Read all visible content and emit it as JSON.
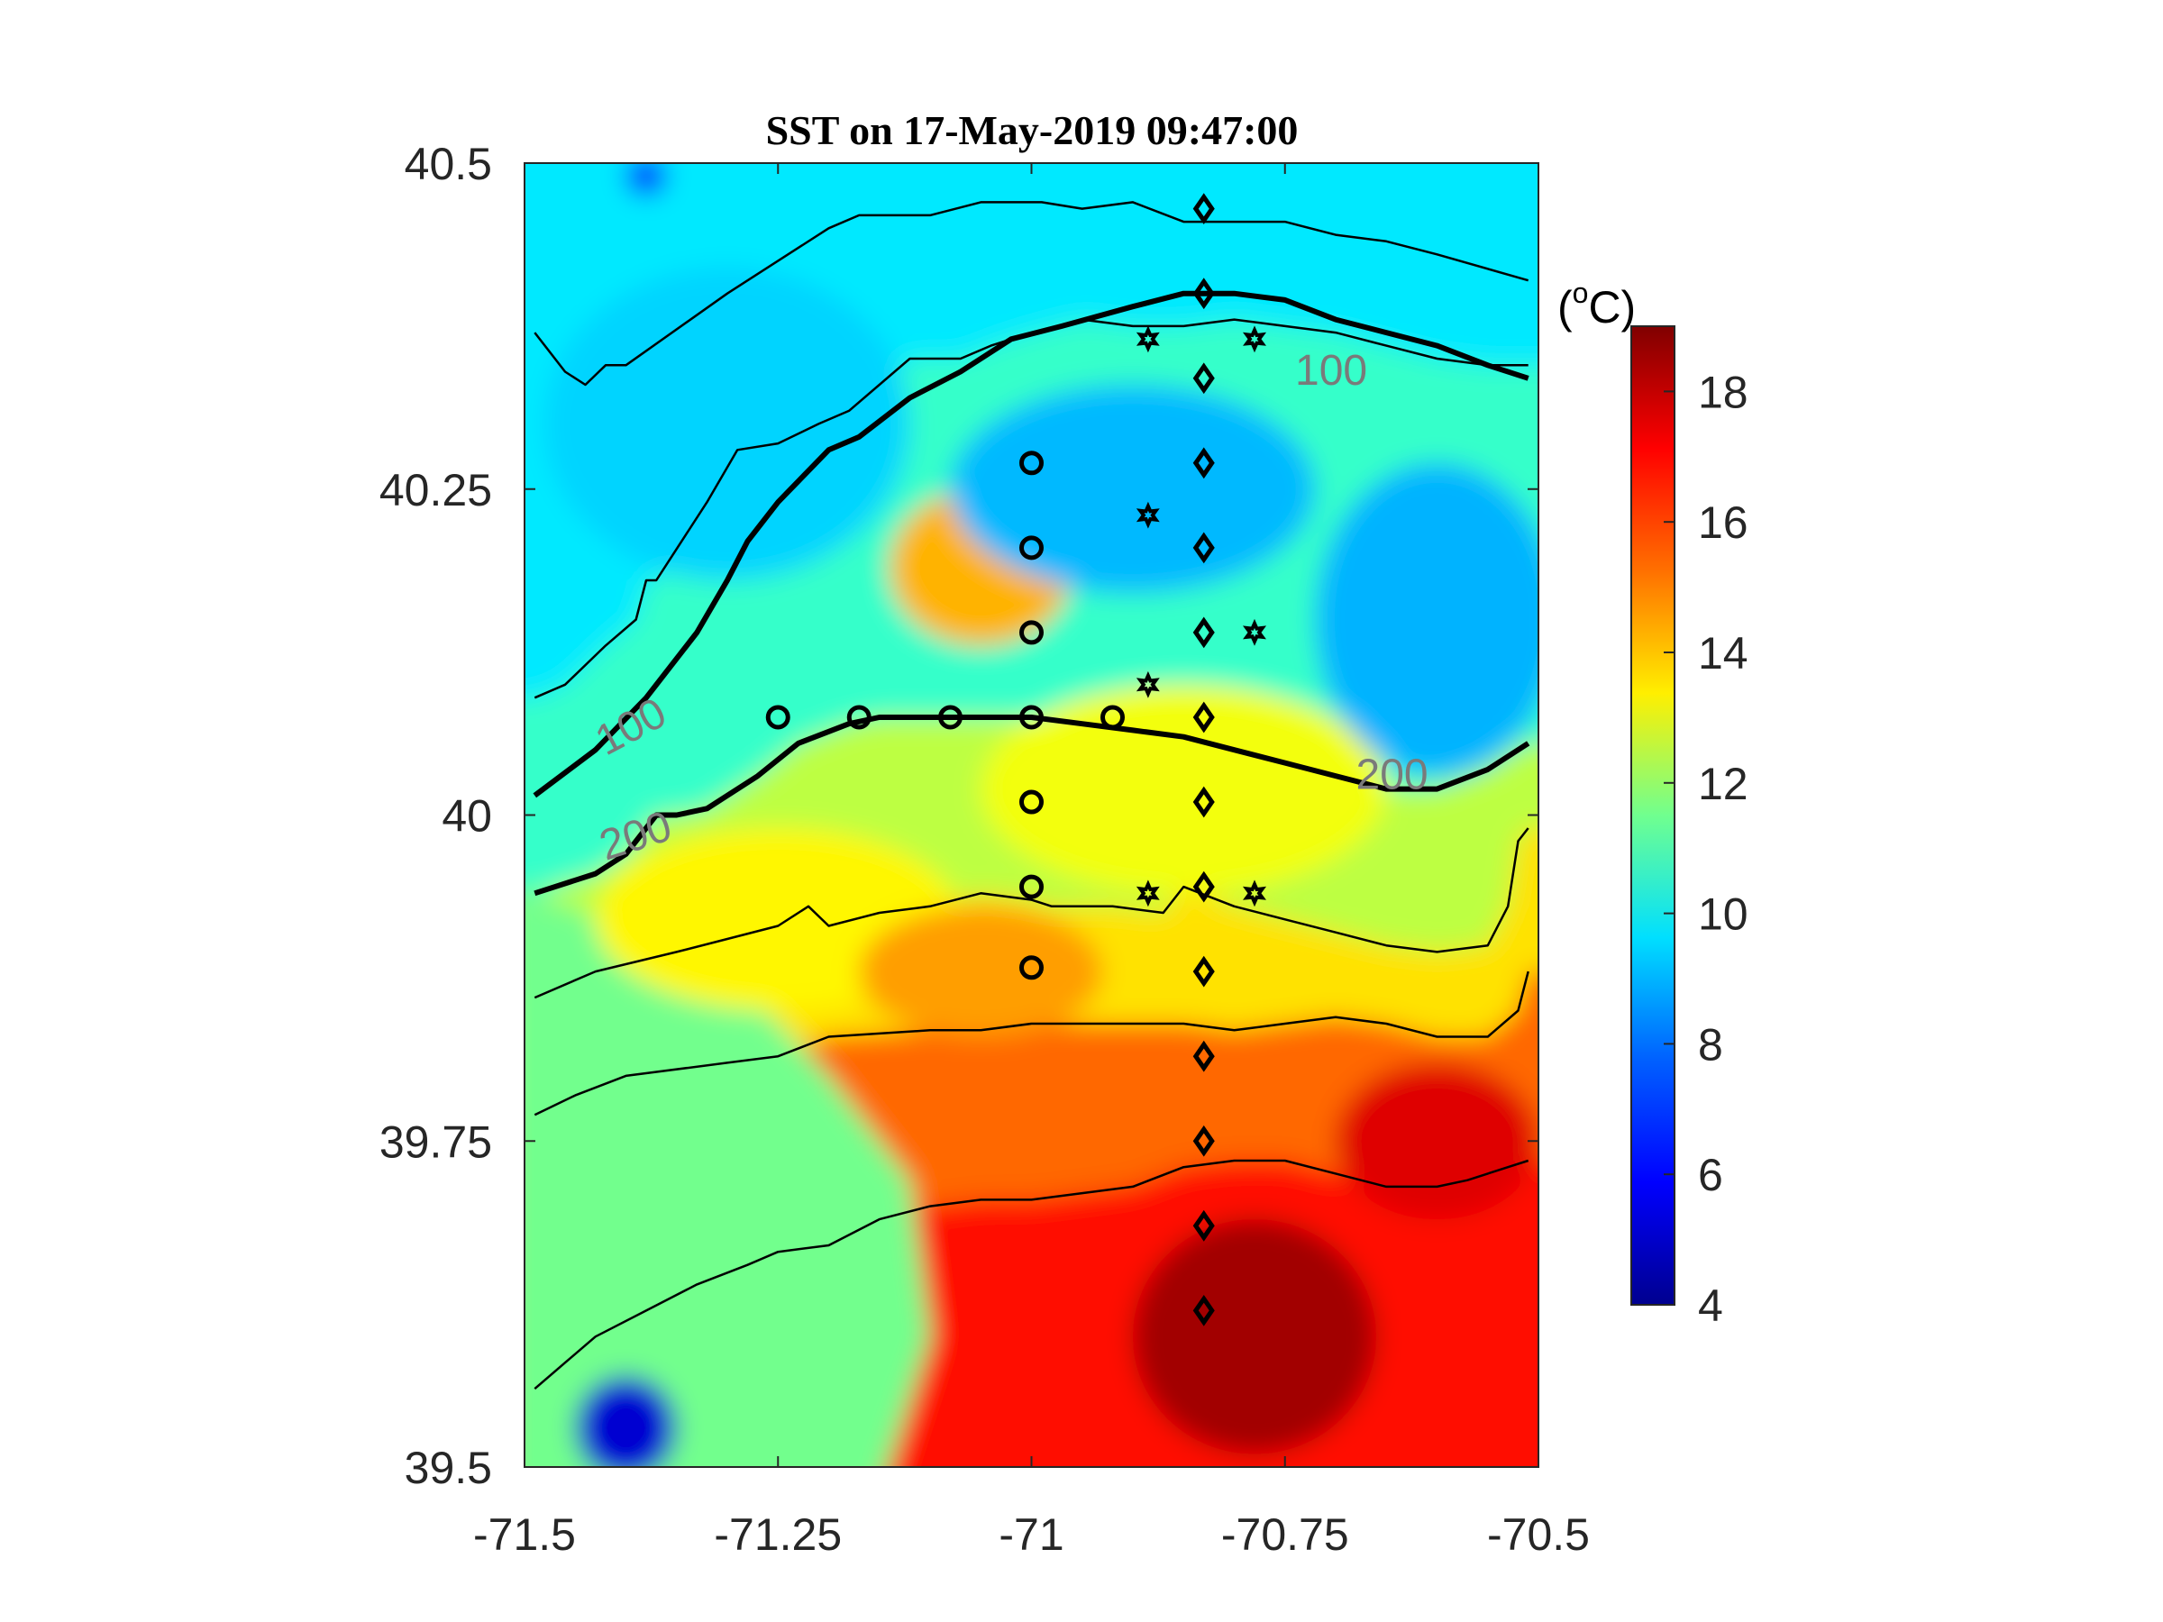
{
  "chart_data": {
    "type": "heatmap",
    "title": "SST on 17-May-2019 09:47:00",
    "x_axis": {
      "range": [
        -71.5,
        -70.5
      ],
      "ticks": [
        -71.5,
        -71.25,
        -71,
        -70.75,
        -70.5
      ],
      "tick_labels": [
        "-71.5",
        "-71.25",
        "-71",
        "-70.75",
        "-70.5"
      ]
    },
    "y_axis": {
      "range": [
        39.5,
        40.5
      ],
      "ticks": [
        39.5,
        39.75,
        40,
        40.25,
        40.5
      ],
      "tick_labels": [
        "39.5",
        "39.75",
        "40",
        "40.25",
        "40.5"
      ]
    },
    "colorbar": {
      "range": [
        4,
        19
      ],
      "ticks": [
        4,
        6,
        8,
        10,
        12,
        14,
        16,
        18
      ],
      "tick_labels": [
        "4",
        "6",
        "8",
        "10",
        "12",
        "14",
        "16",
        "18"
      ],
      "unit_prefix": "(",
      "unit_sup": "o",
      "unit_main": "C)",
      "colormap": "jet"
    },
    "sst_features": [
      {
        "lon": -71.05,
        "lat": 40.19,
        "radius_lon": 0.09,
        "radius_lat": 0.06,
        "value": 14.5
      },
      {
        "lon": -70.85,
        "lat": 40.02,
        "radius_lon": 0.2,
        "radius_lat": 0.08,
        "value": 13.2
      },
      {
        "lon": -71.25,
        "lat": 39.92,
        "radius_lon": 0.18,
        "radius_lat": 0.07,
        "value": 13.5
      },
      {
        "lon": -71.05,
        "lat": 39.88,
        "radius_lon": 0.12,
        "radius_lat": 0.05,
        "value": 14.8
      },
      {
        "lon": -70.78,
        "lat": 39.6,
        "radius_lon": 0.12,
        "radius_lat": 0.09,
        "value": 18.5
      },
      {
        "lon": -70.6,
        "lat": 39.75,
        "radius_lon": 0.1,
        "radius_lat": 0.06,
        "value": 17.6
      },
      {
        "lon": -71.4,
        "lat": 39.53,
        "radius_lon": 0.05,
        "radius_lat": 0.04,
        "value": 5.2
      },
      {
        "lon": -71.38,
        "lat": 40.49,
        "radius_lon": 0.02,
        "radius_lat": 0.015,
        "value": 6.5
      },
      {
        "lon": -70.9,
        "lat": 40.25,
        "radius_lon": 0.18,
        "radius_lat": 0.08,
        "value": 8.6
      },
      {
        "lon": -70.6,
        "lat": 40.15,
        "radius_lon": 0.12,
        "radius_lat": 0.12,
        "value": 8.5
      },
      {
        "lon": -71.3,
        "lat": 40.3,
        "radius_lon": 0.18,
        "radius_lat": 0.12,
        "value": 9.0
      }
    ],
    "isobaths": [
      {
        "label": "",
        "weight": "thin",
        "points": [
          [
            -71.49,
            40.37
          ],
          [
            -71.46,
            40.34
          ],
          [
            -71.44,
            40.33
          ],
          [
            -71.42,
            40.345
          ],
          [
            -71.4,
            40.345
          ],
          [
            -71.3,
            40.4
          ],
          [
            -71.2,
            40.45
          ],
          [
            -71.17,
            40.46
          ],
          [
            -71.1,
            40.46
          ],
          [
            -71.05,
            40.47
          ],
          [
            -70.99,
            40.47
          ],
          [
            -70.95,
            40.465
          ],
          [
            -70.9,
            40.47
          ],
          [
            -70.85,
            40.455
          ],
          [
            -70.8,
            40.455
          ],
          [
            -70.75,
            40.455
          ],
          [
            -70.7,
            40.445
          ],
          [
            -70.65,
            40.44
          ],
          [
            -70.6,
            40.43
          ],
          [
            -70.51,
            40.41
          ]
        ]
      },
      {
        "label": "",
        "weight": "thin",
        "points": [
          [
            -71.49,
            40.09
          ],
          [
            -71.46,
            40.1
          ],
          [
            -71.42,
            40.13
          ],
          [
            -71.39,
            40.15
          ],
          [
            -71.38,
            40.18
          ],
          [
            -71.37,
            40.18
          ],
          [
            -71.32,
            40.24
          ],
          [
            -71.29,
            40.28
          ],
          [
            -71.25,
            40.285
          ],
          [
            -71.21,
            40.3
          ],
          [
            -71.18,
            40.31
          ],
          [
            -71.12,
            40.35
          ],
          [
            -71.07,
            40.35
          ],
          [
            -71.04,
            40.36
          ],
          [
            -71.0,
            40.37
          ],
          [
            -70.95,
            40.38
          ],
          [
            -70.9,
            40.375
          ],
          [
            -70.85,
            40.375
          ],
          [
            -70.8,
            40.38
          ],
          [
            -70.75,
            40.375
          ],
          [
            -70.7,
            40.37
          ],
          [
            -70.65,
            40.36
          ],
          [
            -70.6,
            40.35
          ],
          [
            -70.55,
            40.345
          ],
          [
            -70.51,
            40.345
          ]
        ]
      },
      {
        "label": "100",
        "weight": "thick",
        "points": [
          [
            -71.49,
            40.015
          ],
          [
            -71.43,
            40.05
          ],
          [
            -71.38,
            40.09
          ],
          [
            -71.33,
            40.14
          ],
          [
            -71.3,
            40.18
          ],
          [
            -71.28,
            40.21
          ],
          [
            -71.25,
            40.24
          ],
          [
            -71.2,
            40.28
          ],
          [
            -71.17,
            40.29
          ],
          [
            -71.12,
            40.32
          ],
          [
            -71.07,
            40.34
          ],
          [
            -71.02,
            40.365
          ],
          [
            -70.97,
            40.375
          ],
          [
            -70.9,
            40.39
          ],
          [
            -70.85,
            40.4
          ],
          [
            -70.8,
            40.4
          ],
          [
            -70.75,
            40.395
          ],
          [
            -70.7,
            40.38
          ],
          [
            -70.65,
            40.37
          ],
          [
            -70.6,
            40.36
          ],
          [
            -70.55,
            40.345
          ],
          [
            -70.51,
            40.335
          ]
        ]
      },
      {
        "label": "200",
        "weight": "thick",
        "points": [
          [
            -71.49,
            39.94
          ],
          [
            -71.43,
            39.955
          ],
          [
            -71.4,
            39.97
          ],
          [
            -71.37,
            40.0
          ],
          [
            -71.35,
            40.0
          ],
          [
            -71.32,
            40.005
          ],
          [
            -71.27,
            40.03
          ],
          [
            -71.23,
            40.055
          ],
          [
            -71.18,
            40.07
          ],
          [
            -71.15,
            40.075
          ],
          [
            -71.1,
            40.075
          ],
          [
            -71.05,
            40.075
          ],
          [
            -71.0,
            40.075
          ],
          [
            -70.95,
            40.07
          ],
          [
            -70.9,
            40.065
          ],
          [
            -70.85,
            40.06
          ],
          [
            -70.8,
            40.05
          ],
          [
            -70.75,
            40.04
          ],
          [
            -70.7,
            40.03
          ],
          [
            -70.65,
            40.02
          ],
          [
            -70.6,
            40.02
          ],
          [
            -70.55,
            40.035
          ],
          [
            -70.51,
            40.055
          ]
        ]
      },
      {
        "label": "",
        "weight": "thin",
        "points": [
          [
            -71.49,
            39.86
          ],
          [
            -71.43,
            39.88
          ],
          [
            -71.35,
            39.895
          ],
          [
            -71.3,
            39.905
          ],
          [
            -71.25,
            39.915
          ],
          [
            -71.22,
            39.93
          ],
          [
            -71.2,
            39.915
          ],
          [
            -71.15,
            39.925
          ],
          [
            -71.1,
            39.93
          ],
          [
            -71.05,
            39.94
          ],
          [
            -71.0,
            39.935
          ],
          [
            -70.98,
            39.93
          ],
          [
            -70.92,
            39.93
          ],
          [
            -70.87,
            39.925
          ],
          [
            -70.85,
            39.945
          ],
          [
            -70.8,
            39.93
          ],
          [
            -70.75,
            39.92
          ],
          [
            -70.7,
            39.91
          ],
          [
            -70.65,
            39.9
          ],
          [
            -70.6,
            39.895
          ],
          [
            -70.55,
            39.9
          ],
          [
            -70.53,
            39.93
          ],
          [
            -70.52,
            39.98
          ],
          [
            -70.51,
            39.99
          ]
        ]
      },
      {
        "label": "",
        "weight": "thin",
        "points": [
          [
            -71.49,
            39.77
          ],
          [
            -71.45,
            39.785
          ],
          [
            -71.4,
            39.8
          ],
          [
            -71.3,
            39.81
          ],
          [
            -71.25,
            39.815
          ],
          [
            -71.2,
            39.83
          ],
          [
            -71.1,
            39.835
          ],
          [
            -71.05,
            39.835
          ],
          [
            -71.0,
            39.84
          ],
          [
            -70.95,
            39.84
          ],
          [
            -70.9,
            39.84
          ],
          [
            -70.85,
            39.84
          ],
          [
            -70.8,
            39.835
          ],
          [
            -70.75,
            39.84
          ],
          [
            -70.7,
            39.845
          ],
          [
            -70.65,
            39.84
          ],
          [
            -70.6,
            39.83
          ],
          [
            -70.55,
            39.83
          ],
          [
            -70.52,
            39.85
          ],
          [
            -70.51,
            39.88
          ]
        ]
      },
      {
        "label": "",
        "weight": "thin",
        "points": [
          [
            -71.49,
            39.56
          ],
          [
            -71.46,
            39.58
          ],
          [
            -71.43,
            39.6
          ],
          [
            -71.38,
            39.62
          ],
          [
            -71.33,
            39.64
          ],
          [
            -71.28,
            39.655
          ],
          [
            -71.25,
            39.665
          ],
          [
            -71.2,
            39.67
          ],
          [
            -71.15,
            39.69
          ],
          [
            -71.1,
            39.7
          ],
          [
            -71.05,
            39.705
          ],
          [
            -71.0,
            39.705
          ],
          [
            -70.95,
            39.71
          ],
          [
            -70.9,
            39.715
          ],
          [
            -70.85,
            39.73
          ],
          [
            -70.8,
            39.735
          ],
          [
            -70.75,
            39.735
          ],
          [
            -70.7,
            39.725
          ],
          [
            -70.65,
            39.715
          ],
          [
            -70.6,
            39.715
          ],
          [
            -70.57,
            39.72
          ],
          [
            -70.53,
            39.73
          ],
          [
            -70.51,
            39.735
          ]
        ]
      }
    ],
    "isobath_label_positions": [
      {
        "text": "100",
        "lon": -71.42,
        "lat": 40.045,
        "angle": -28
      },
      {
        "text": "100",
        "lon": -70.74,
        "lat": 40.33,
        "angle": 0
      },
      {
        "text": "200",
        "lon": -71.42,
        "lat": 39.965,
        "angle": -18
      },
      {
        "text": "200",
        "lon": -70.68,
        "lat": 40.02,
        "angle": 0
      }
    ],
    "stations_circle": [
      [
        -71.25,
        40.075
      ],
      [
        -71.17,
        40.075
      ],
      [
        -71.08,
        40.075
      ],
      [
        -71.0,
        40.075
      ],
      [
        -70.92,
        40.075
      ],
      [
        -71.0,
        40.27
      ],
      [
        -71.0,
        40.205
      ],
      [
        -71.0,
        40.14
      ],
      [
        -71.0,
        40.01
      ],
      [
        -71.0,
        39.945
      ],
      [
        -71.0,
        39.883
      ]
    ],
    "stations_diamond": [
      [
        -70.83,
        40.465
      ],
      [
        -70.83,
        40.4
      ],
      [
        -70.83,
        40.335
      ],
      [
        -70.83,
        40.27
      ],
      [
        -70.83,
        40.205
      ],
      [
        -70.83,
        40.14
      ],
      [
        -70.83,
        40.075
      ],
      [
        -70.83,
        40.01
      ],
      [
        -70.83,
        39.945
      ],
      [
        -70.83,
        39.88
      ],
      [
        -70.83,
        39.815
      ],
      [
        -70.83,
        39.75
      ],
      [
        -70.83,
        39.685
      ],
      [
        -70.83,
        39.62
      ]
    ],
    "stations_star": [
      [
        -70.885,
        40.365
      ],
      [
        -70.78,
        40.365
      ],
      [
        -70.885,
        40.23
      ],
      [
        -70.78,
        40.14
      ],
      [
        -70.885,
        40.1
      ],
      [
        -70.885,
        39.94
      ],
      [
        -70.78,
        39.94
      ]
    ]
  }
}
